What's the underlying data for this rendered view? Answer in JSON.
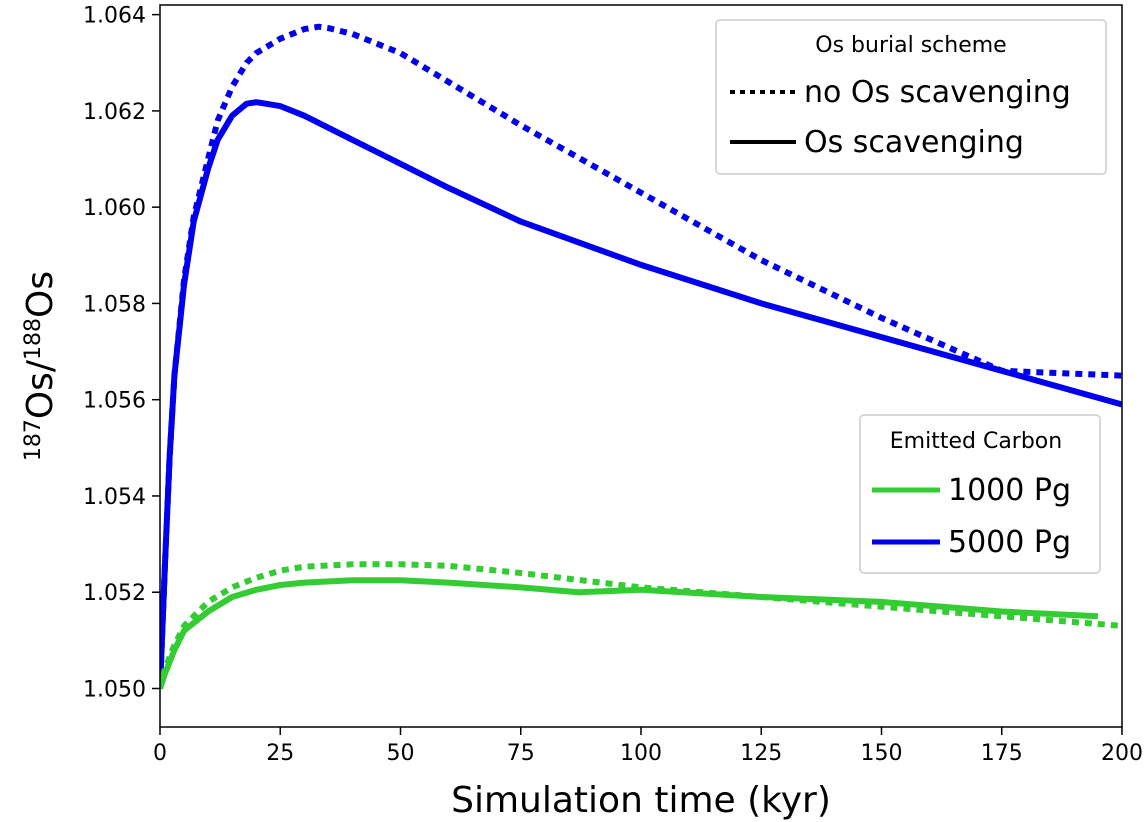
{
  "chart_data": {
    "type": "line",
    "xlabel": "Simulation time (kyr)",
    "ylabel": {
      "sup1": "187",
      "part1": "Os/",
      "sup2": "188",
      "part2": "Os"
    },
    "xlim": [
      0,
      200
    ],
    "ylim": [
      1.0492,
      1.0642
    ],
    "xticks": [
      0,
      25,
      50,
      75,
      100,
      125,
      150,
      175,
      200
    ],
    "yticks": [
      1.05,
      1.052,
      1.054,
      1.056,
      1.058,
      1.06,
      1.062,
      1.064
    ],
    "ytick_labels": [
      "1.050",
      "1.052",
      "1.054",
      "1.056",
      "1.058",
      "1.060",
      "1.062",
      "1.064"
    ],
    "grid": false,
    "series": [
      {
        "carbon": "5000 Pg",
        "scheme": "no Os scavenging",
        "color": "#0000ee",
        "style": "dotted",
        "x": [
          0,
          1,
          2,
          3,
          5,
          7,
          10,
          12,
          15,
          18,
          20,
          25,
          30,
          33,
          35,
          40,
          50,
          60,
          75,
          100,
          125,
          150,
          175,
          200
        ],
        "y": [
          1.05,
          1.0525,
          1.0548,
          1.0565,
          1.0585,
          1.0598,
          1.061,
          1.0618,
          1.0625,
          1.063,
          1.0632,
          1.0635,
          1.0637,
          1.06375,
          1.06372,
          1.0636,
          1.0632,
          1.0626,
          1.0617,
          1.0603,
          1.0589,
          1.0577,
          1.0566,
          1.0565
        ]
      },
      {
        "carbon": "5000 Pg",
        "scheme": "Os scavenging",
        "color": "#0000ee",
        "style": "solid",
        "x": [
          0,
          1,
          2,
          3,
          5,
          7,
          10,
          12,
          15,
          18,
          20,
          22,
          25,
          30,
          40,
          50,
          60,
          75,
          100,
          125,
          150,
          175,
          200
        ],
        "y": [
          1.05,
          1.0525,
          1.0548,
          1.0565,
          1.0584,
          1.0597,
          1.0608,
          1.0614,
          1.0619,
          1.06215,
          1.06218,
          1.06215,
          1.0621,
          1.0619,
          1.0614,
          1.0609,
          1.0604,
          1.0597,
          1.0588,
          1.058,
          1.0573,
          1.0566,
          1.0559
        ]
      },
      {
        "carbon": "1000 Pg",
        "scheme": "no Os scavenging",
        "color": "#33cc33",
        "style": "dotted",
        "x": [
          0,
          1,
          3,
          5,
          10,
          15,
          20,
          25,
          30,
          40,
          50,
          60,
          75,
          100,
          125,
          150,
          175,
          200
        ],
        "y": [
          1.05,
          1.0504,
          1.0509,
          1.0513,
          1.0518,
          1.0521,
          1.0523,
          1.05245,
          1.05253,
          1.05258,
          1.05258,
          1.05255,
          1.0524,
          1.0521,
          1.0519,
          1.0517,
          1.0515,
          1.0513
        ]
      },
      {
        "carbon": "1000 Pg",
        "scheme": "Os scavenging",
        "color": "#33cc33",
        "style": "solid",
        "x": [
          0,
          1,
          3,
          5,
          10,
          15,
          20,
          25,
          30,
          40,
          50,
          60,
          75,
          87,
          100,
          125,
          150,
          175,
          195
        ],
        "y": [
          1.05,
          1.0503,
          1.0508,
          1.0512,
          1.0516,
          1.0519,
          1.05205,
          1.05215,
          1.0522,
          1.05225,
          1.05225,
          1.0522,
          1.0521,
          1.052,
          1.05205,
          1.0519,
          1.0518,
          1.0516,
          1.0515
        ]
      }
    ],
    "legends": [
      {
        "title": "Os burial scheme",
        "placement": "top-right",
        "entries": [
          {
            "label": "no Os scavenging",
            "style": "dotted",
            "color": "#000000"
          },
          {
            "label": "Os scavenging",
            "style": "solid",
            "color": "#000000"
          }
        ]
      },
      {
        "title": "Emitted Carbon",
        "placement": "center-right",
        "entries": [
          {
            "label": "1000 Pg",
            "style": "solid",
            "color": "#33cc33"
          },
          {
            "label": "5000 Pg",
            "style": "solid",
            "color": "#0000ee"
          }
        ]
      }
    ]
  }
}
